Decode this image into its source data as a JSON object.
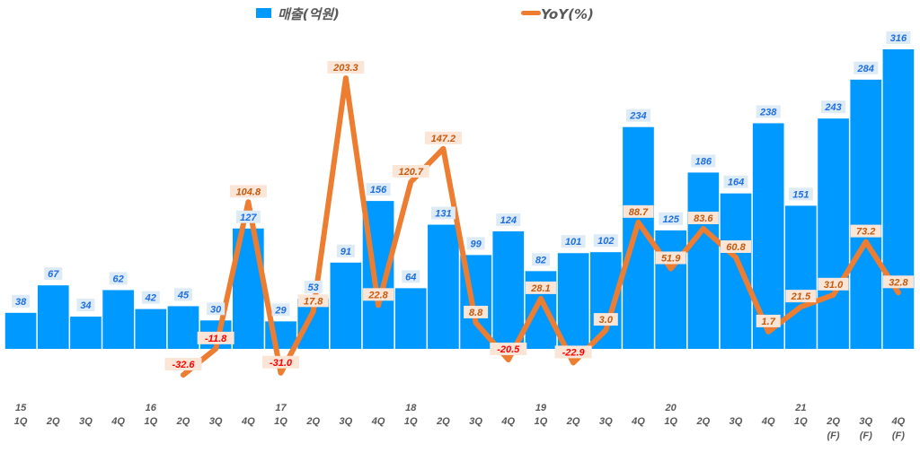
{
  "chart_data": {
    "type": "bar+line",
    "categories": [
      [
        "15",
        "1Q"
      ],
      [
        "",
        "2Q"
      ],
      [
        "",
        "3Q"
      ],
      [
        "",
        "4Q"
      ],
      [
        "16",
        "1Q"
      ],
      [
        "",
        "2Q"
      ],
      [
        "",
        "3Q"
      ],
      [
        "",
        "4Q"
      ],
      [
        "17",
        "1Q"
      ],
      [
        "",
        "2Q"
      ],
      [
        "",
        "3Q"
      ],
      [
        "",
        "4Q"
      ],
      [
        "18",
        "1Q"
      ],
      [
        "",
        "2Q"
      ],
      [
        "",
        "3Q"
      ],
      [
        "",
        "4Q"
      ],
      [
        "19",
        "1Q"
      ],
      [
        "",
        "2Q"
      ],
      [
        "",
        "3Q"
      ],
      [
        "",
        "4Q"
      ],
      [
        "20",
        "1Q"
      ],
      [
        "",
        "2Q"
      ],
      [
        "",
        "3Q"
      ],
      [
        "",
        "4Q"
      ],
      [
        "21",
        "1Q"
      ],
      [
        "",
        "2Q",
        "(F)"
      ],
      [
        "",
        "3Q",
        "(F)"
      ],
      [
        "",
        "4Q",
        "(F)"
      ]
    ],
    "series": [
      {
        "name": "매출(억원)",
        "type": "bar",
        "color": "#0099FF",
        "values": [
          38,
          67,
          34,
          62,
          42,
          45,
          30,
          127,
          29,
          53,
          91,
          156,
          64,
          131,
          99,
          124,
          82,
          101,
          102,
          234,
          125,
          186,
          164,
          238,
          151,
          243,
          284,
          316
        ]
      },
      {
        "name": "YoY(%)",
        "type": "line",
        "color": "#ED7D31",
        "values": [
          null,
          null,
          null,
          null,
          null,
          -32.6,
          -11.8,
          104.8,
          -31.0,
          17.8,
          203.3,
          22.8,
          120.7,
          147.2,
          8.8,
          -20.5,
          28.1,
          -22.9,
          3.0,
          88.7,
          51.9,
          83.6,
          60.8,
          1.7,
          21.5,
          31.0,
          73.2,
          32.8
        ]
      }
    ],
    "legend": "top",
    "grid": false,
    "colors": {
      "bar_label": "#1F6FE0",
      "bar_label_bg": "#DDEBF7",
      "yoy_label": "#C55A11",
      "yoy_negative": "#FF0000",
      "yoy_label_bg": "#FBE5D6"
    }
  }
}
